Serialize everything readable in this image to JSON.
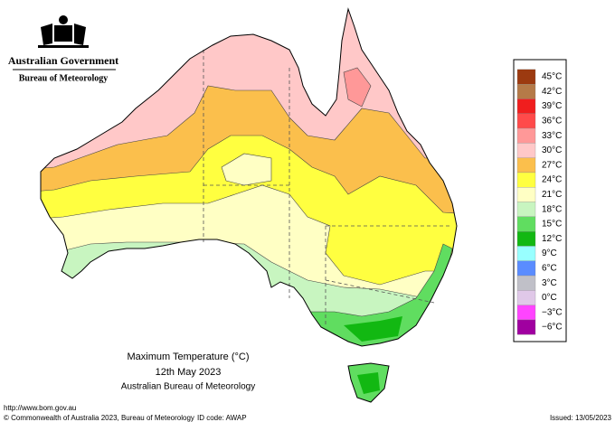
{
  "header": {
    "government": "Australian Government",
    "bureau": "Bureau of Meteorology"
  },
  "legend": [
    {
      "label": "45°C",
      "color": "#9c3a10"
    },
    {
      "label": "42°C",
      "color": "#b57a48"
    },
    {
      "label": "39°C",
      "color": "#f01e1e"
    },
    {
      "label": "36°C",
      "color": "#ff4a4a"
    },
    {
      "label": "33°C",
      "color": "#ff9898"
    },
    {
      "label": "30°C",
      "color": "#ffc8c8"
    },
    {
      "label": "27°C",
      "color": "#fbbf4c"
    },
    {
      "label": "24°C",
      "color": "#ffff40"
    },
    {
      "label": "21°C",
      "color": "#ffffc4"
    },
    {
      "label": "18°C",
      "color": "#c8f5c0"
    },
    {
      "label": "15°C",
      "color": "#60dd60"
    },
    {
      "label": "12°C",
      "color": "#12b812"
    },
    {
      "label": "9°C",
      "color": "#98ffff"
    },
    {
      "label": "6°C",
      "color": "#5a8cff"
    },
    {
      "label": "3°C",
      "color": "#c0c0c8"
    },
    {
      "label": "0°C",
      "color": "#e0c8e8"
    },
    {
      "label": "−3°C",
      "color": "#ff44ff"
    },
    {
      "label": "−6°C",
      "color": "#a000a0"
    }
  ],
  "caption": {
    "title": "Maximum Temperature (°C)",
    "date": "12th May 2023",
    "source": "Australian Bureau of Meteorology"
  },
  "footer": {
    "url": "http://www.bom.gov.au",
    "copyright": "© Commonwealth of Australia 2023, Bureau of Meteorology",
    "id_code": "ID code: AWAP",
    "issued": "Issued: 13/05/2023"
  }
}
